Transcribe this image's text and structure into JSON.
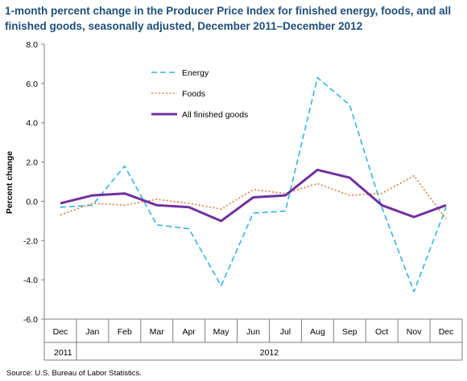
{
  "title": "1-month percent change in the Producer Price Index for finished energy, foods, and all finished goods, seasonally adjusted, December 2011–December 2012",
  "source": "Source: U.S. Bureau of Labor Statistics.",
  "chart_data": {
    "type": "line",
    "title": "1-month percent change in the Producer Price Index for finished energy, foods, and all finished goods, seasonally adjusted, December 2011–December 2012",
    "xlabel": "",
    "ylabel": "Percent change",
    "categories": [
      "Dec",
      "Jan",
      "Feb",
      "Mar",
      "Apr",
      "May",
      "Jun",
      "Jul",
      "Aug",
      "Sep",
      "Oct",
      "Nov",
      "Dec"
    ],
    "year_groups": [
      {
        "label": "2011",
        "span": 1
      },
      {
        "label": "2012",
        "span": 12
      }
    ],
    "ylim": [
      -6.0,
      8.0
    ],
    "yticks": [
      8.0,
      6.0,
      4.0,
      2.0,
      0.0,
      -2.0,
      -4.0,
      -6.0
    ],
    "ytick_labels": [
      "8.0",
      "6.0",
      "4.0",
      "2.0",
      "0.0",
      "-2.0",
      "-4.0",
      "-6.0"
    ],
    "grid": false,
    "legend_position": "top-left",
    "series": [
      {
        "name": "Energy",
        "color": "#33b5e5",
        "style": "dashed",
        "values": [
          -0.3,
          -0.2,
          1.8,
          -1.2,
          -1.4,
          -4.3,
          -0.6,
          -0.5,
          6.3,
          4.9,
          -0.3,
          -4.6,
          -0.3
        ]
      },
      {
        "name": "Foods",
        "color": "#e07b39",
        "style": "dotted",
        "values": [
          -0.7,
          -0.1,
          -0.2,
          0.1,
          -0.1,
          -0.4,
          0.6,
          0.4,
          0.9,
          0.3,
          0.4,
          1.3,
          -0.9
        ]
      },
      {
        "name": "All finished goods",
        "color": "#7030a0",
        "style": "solid",
        "values": [
          -0.1,
          0.3,
          0.4,
          -0.2,
          -0.3,
          -1.0,
          0.2,
          0.3,
          1.6,
          1.2,
          -0.2,
          -0.8,
          -0.2
        ]
      }
    ]
  }
}
